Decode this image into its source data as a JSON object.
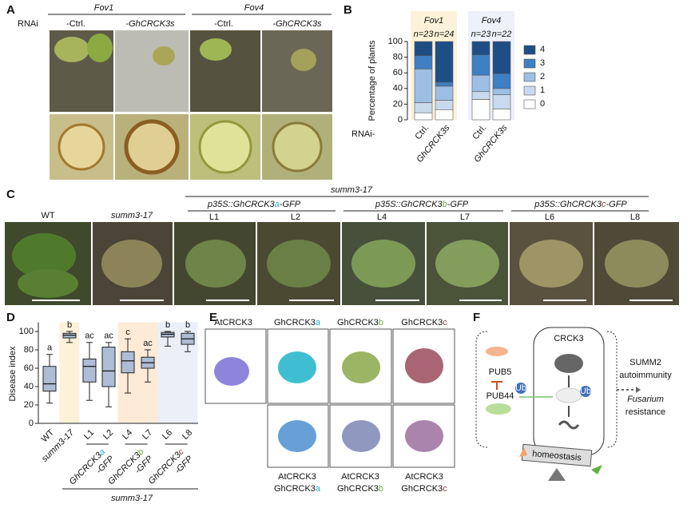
{
  "panel_labels": [
    "A",
    "B",
    "C",
    "D",
    "E",
    "F"
  ],
  "panel_a": {
    "strains": [
      "Fov1",
      "Fov4"
    ],
    "row_label": "RNAi",
    "columns": [
      "-Ctrl.",
      "-GhCRCK3s",
      "-Ctrl.",
      "-GhCRCK3s"
    ]
  },
  "chart_data": [
    {
      "type": "stacked_bar",
      "ylabel": "Percentage of plants",
      "row_label": "RNAi-",
      "groups": [
        {
          "name": "Fov1",
          "n": [
            "n=23",
            "n=24"
          ],
          "color": "#fdf2d9"
        },
        {
          "name": "Fov4",
          "n": [
            "n=23",
            "n=22"
          ],
          "color": "#eef1fa"
        }
      ],
      "categories": [
        "Ctrl.",
        "GhCRCK3s",
        "Ctrl.",
        "GhCRCK3s"
      ],
      "series": [
        {
          "name": "0",
          "color": "#ffffff",
          "values": [
            9,
            13,
            26,
            14
          ]
        },
        {
          "name": "1",
          "color": "#c9d9ee",
          "values": [
            13,
            12,
            10,
            18
          ]
        },
        {
          "name": "2",
          "color": "#9dbfe3",
          "values": [
            43,
            18,
            21,
            8
          ]
        },
        {
          "name": "3",
          "color": "#3f7fc3",
          "values": [
            17,
            5,
            26,
            19
          ]
        },
        {
          "name": "4",
          "color": "#1f4e86",
          "values": [
            18,
            52,
            17,
            41
          ]
        }
      ],
      "ylim": [
        0,
        100
      ],
      "yticks": [
        0,
        20,
        40,
        60,
        80,
        100
      ]
    },
    {
      "type": "box",
      "ylabel": "Disease index",
      "background": "summ3-17",
      "categories": [
        "WT",
        "summ3-17",
        "L1",
        "L2",
        "L4",
        "L7",
        "L6",
        "L8"
      ],
      "boxes": [
        {
          "min": 22,
          "q1": 35,
          "median": 43,
          "q3": 62,
          "max": 75
        },
        {
          "min": 88,
          "q1": 93,
          "median": 96,
          "q3": 98,
          "max": 100
        },
        {
          "min": 25,
          "q1": 45,
          "median": 62,
          "q3": 70,
          "max": 88
        },
        {
          "min": 18,
          "q1": 40,
          "median": 57,
          "q3": 83,
          "max": 88
        },
        {
          "min": 33,
          "q1": 55,
          "median": 68,
          "q3": 78,
          "max": 92
        },
        {
          "min": 45,
          "q1": 60,
          "median": 66,
          "q3": 72,
          "max": 80
        },
        {
          "min": 84,
          "q1": 94,
          "median": 97,
          "q3": 99,
          "max": 100
        },
        {
          "min": 78,
          "q1": 86,
          "median": 92,
          "q3": 98,
          "max": 100
        }
      ],
      "letters": [
        "a",
        "b",
        "ac",
        "ac",
        "c",
        "ac",
        "b",
        "b"
      ],
      "constructs": [
        [
          "GhCRCK3",
          "a",
          "-GFP"
        ],
        [
          "GhCRCK3",
          "b",
          "-GFP"
        ],
        [
          "GhCRCK3",
          "c",
          "-GFP"
        ]
      ],
      "column_colors": [
        "#ffffff",
        "#fdf2d9",
        "#ffffff",
        "#ffffff",
        "#fdebd8",
        "#fdebd8",
        "#eaeff8",
        "#eaeff8"
      ],
      "box_color": "#aebdd6",
      "ylim": [
        0,
        110
      ],
      "yticks": [
        0,
        20,
        40,
        60,
        80,
        100
      ]
    }
  ],
  "panel_c": {
    "background": "summ3-17",
    "genotypes": [
      "WT",
      "summ3-17"
    ],
    "constructs": [
      [
        "p35S::GhCRCK3",
        "a",
        "-GFP"
      ],
      [
        "p35S::GhCRCK3",
        "b",
        "-GFP"
      ],
      [
        "p35S::GhCRCK3",
        "c",
        "-GFP"
      ]
    ],
    "letter_colors": [
      "#1fb3c9",
      "#79ad3b",
      "#8c3b3b"
    ],
    "lines": [
      "L1",
      "L2",
      "L4",
      "L7",
      "L6",
      "L8"
    ]
  },
  "panel_e": {
    "titles": [
      [
        "AtCRCK3"
      ],
      [
        "GhCRCK3",
        "a"
      ],
      [
        "GhCRCK3",
        "b"
      ],
      [
        "GhCRCK3",
        "c"
      ]
    ],
    "overlays": [
      [
        [
          "AtCRCK3"
        ],
        [
          "GhCRCK3",
          "a"
        ]
      ],
      [
        [
          "AtCRCK3"
        ],
        [
          "GhCRCK3",
          "b"
        ]
      ],
      [
        [
          "AtCRCK3"
        ],
        [
          "GhCRCK3",
          "c"
        ]
      ]
    ]
  },
  "panel_f": {
    "receptor": "CRCK3",
    "ligases": [
      "PUB5",
      "PUB44"
    ],
    "ubiquitin": [
      "Ub",
      "Ub"
    ],
    "outcomes": [
      "SUMM2",
      "autoimmunity",
      "Fusarium",
      "resistance"
    ],
    "balance": "homeostasis"
  }
}
